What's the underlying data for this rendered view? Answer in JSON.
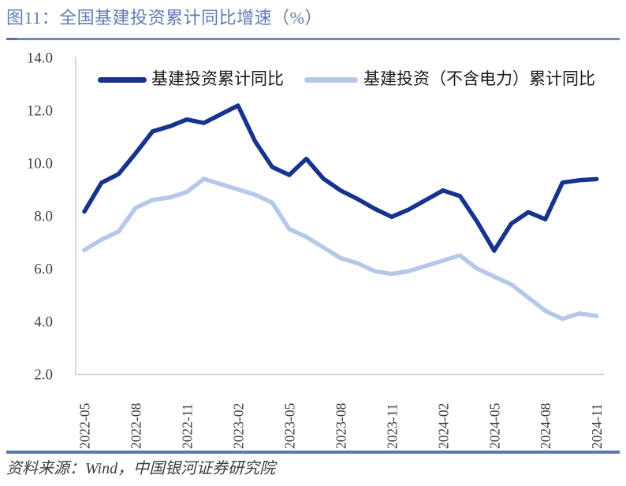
{
  "figure": {
    "title": "图11：全国基建投资累计同比增速（%）",
    "source": "资料来源：Wind，中国银河证券研究院"
  },
  "colors": {
    "title_text": "#5e7cb4",
    "title_rule": "#6f86c0",
    "title_rule_cap": "#5d6f9e",
    "footer_rule": "#5d76b0",
    "axis_line": "#cfcfcf",
    "tick_label": "#3d3d3d",
    "series_dark": "#16348e",
    "series_light": "#b6c8ea"
  },
  "chart_data": {
    "type": "line",
    "title": "全国基建投资累计同比增速（%）",
    "xlabel": "",
    "ylabel": "",
    "ylim": [
      2.0,
      14.0
    ],
    "ytick_step": 2.0,
    "grid": false,
    "legend_position": "top",
    "x_axis_note": "monthly slots 2022-05 to 2024-11; 2023-01 and 2024-01 have no data points",
    "x": [
      "2022-05",
      "2022-06",
      "2022-07",
      "2022-08",
      "2022-09",
      "2022-10",
      "2022-11",
      "2022-12",
      "2023-02",
      "2023-03",
      "2023-04",
      "2023-05",
      "2023-06",
      "2023-07",
      "2023-08",
      "2023-09",
      "2023-10",
      "2023-11",
      "2023-12",
      "2024-02",
      "2024-03",
      "2024-04",
      "2024-05",
      "2024-06",
      "2024-07",
      "2024-08",
      "2024-09",
      "2024-10",
      "2024-11"
    ],
    "series": [
      {
        "name": "基建投资累计同比",
        "color": "#16348e",
        "values": [
          8.16,
          9.25,
          9.58,
          10.37,
          11.2,
          11.39,
          11.65,
          11.52,
          12.18,
          10.82,
          9.85,
          9.55,
          10.16,
          9.41,
          8.96,
          8.64,
          8.27,
          7.96,
          8.24,
          8.96,
          8.75,
          7.78,
          6.68,
          7.7,
          8.14,
          7.87,
          9.26,
          9.35,
          9.39
        ]
      },
      {
        "name": "基建投资（不含电力）累计同比",
        "color": "#b6c8ea",
        "values": [
          6.7,
          7.1,
          7.4,
          8.3,
          8.6,
          8.7,
          8.9,
          9.4,
          9.0,
          8.8,
          8.5,
          7.5,
          7.2,
          6.8,
          6.4,
          6.2,
          5.9,
          5.8,
          5.9,
          6.3,
          6.5,
          6.0,
          5.7,
          5.4,
          4.9,
          4.4,
          4.1,
          4.3,
          4.2
        ]
      }
    ],
    "xticks": [
      "2022-05",
      "2022-08",
      "2022-11",
      "2023-02",
      "2023-05",
      "2023-08",
      "2023-11",
      "2024-02",
      "2024-05",
      "2024-08",
      "2024-11"
    ],
    "yticks": [
      "14.0",
      "12.0",
      "10.0",
      "8.0",
      "6.0",
      "4.0",
      "2.0"
    ]
  }
}
